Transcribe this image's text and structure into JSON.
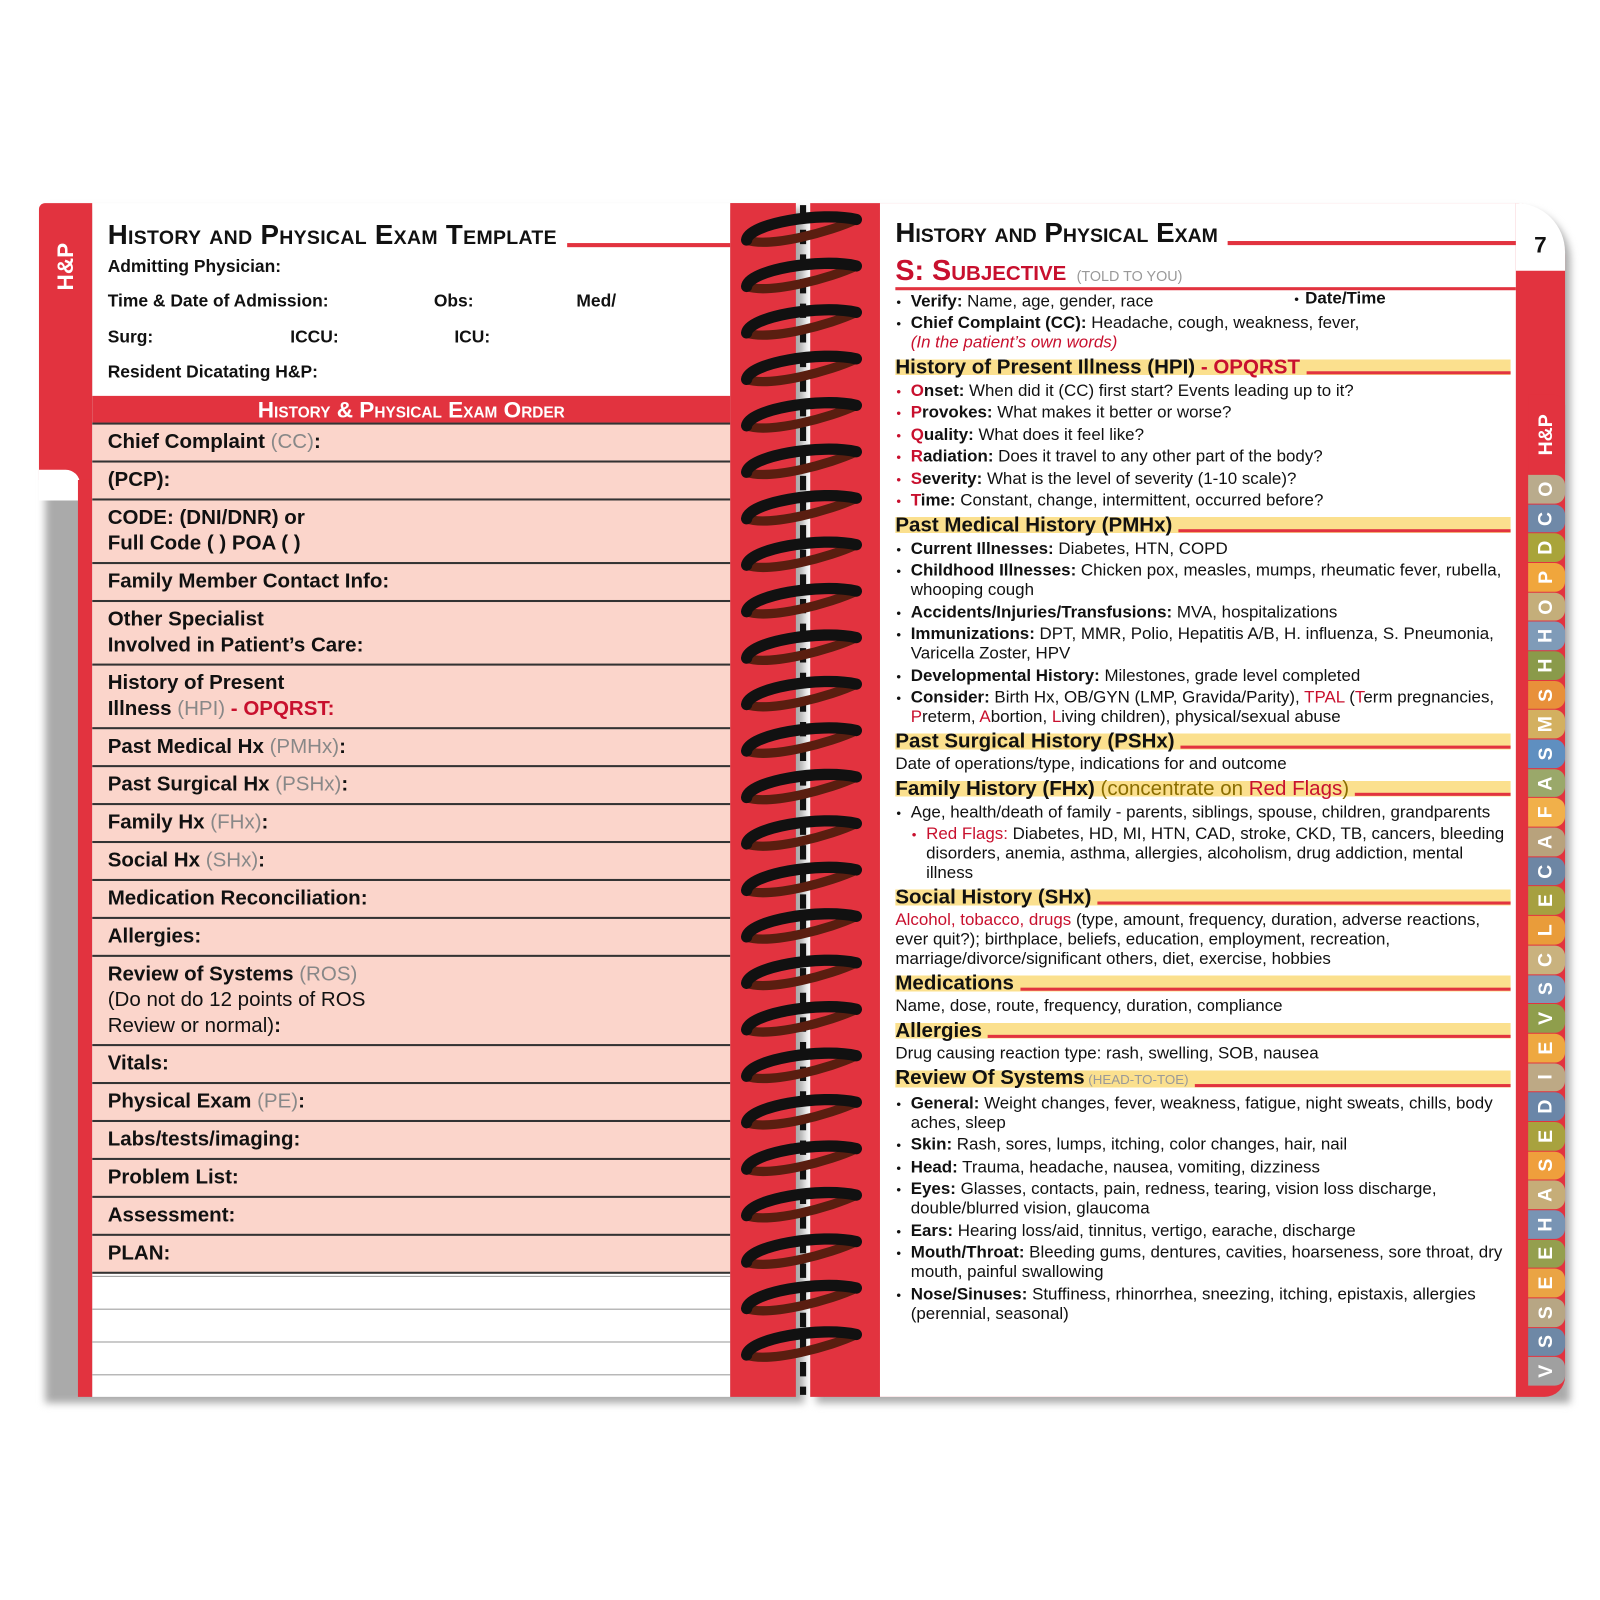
{
  "left_page": {
    "tab": "H&P",
    "title": "History and Physical Exam Template",
    "fields": [
      [
        "Admitting Physician:"
      ],
      [
        "Time & Date of Admission:",
        "Obs:",
        "Med/"
      ],
      [
        "Surg:",
        "ICCU:",
        "ICU:"
      ],
      [
        "Resident Dicatating H&P:"
      ]
    ],
    "order_heading": "History & Physical Exam Order",
    "rows": [
      [
        [
          {
            "s": "bold",
            "t": "Chief Complaint"
          },
          {
            "s": "gray",
            "t": " (CC)"
          },
          {
            "s": "bold",
            "t": ":"
          }
        ]
      ],
      [
        [
          {
            "s": "bold",
            "t": "(PCP):"
          }
        ]
      ],
      [
        [
          {
            "s": "bold",
            "t": "CODE: (DNI/DNR) or"
          }
        ],
        [
          {
            "s": "bold",
            "t": "Full Code ( ) POA ( )"
          }
        ]
      ],
      [
        [
          {
            "s": "bold",
            "t": "Family Member Contact Info:"
          }
        ]
      ],
      [
        [
          {
            "s": "bold",
            "t": "Other Specialist"
          }
        ],
        [
          {
            "s": "bold",
            "t": "Involved in Patient’s Care:"
          }
        ]
      ],
      [
        [
          {
            "s": "bold",
            "t": "History of Present"
          }
        ],
        [
          {
            "s": "bold",
            "t": "Illness"
          },
          {
            "s": "gray",
            "t": " (HPI)"
          },
          {
            "s": "red-bold",
            "t": " - OPQRST:"
          }
        ]
      ],
      [
        [
          {
            "s": "bold",
            "t": "Past Medical Hx"
          },
          {
            "s": "gray",
            "t": " (PMHx)"
          },
          {
            "s": "bold",
            "t": ":"
          }
        ]
      ],
      [
        [
          {
            "s": "bold",
            "t": "Past Surgical Hx"
          },
          {
            "s": "gray",
            "t": " (PSHx)"
          },
          {
            "s": "bold",
            "t": ":"
          }
        ]
      ],
      [
        [
          {
            "s": "bold",
            "t": "Family Hx"
          },
          {
            "s": "gray",
            "t": " (FHx)"
          },
          {
            "s": "bold",
            "t": ":"
          }
        ]
      ],
      [
        [
          {
            "s": "bold",
            "t": "Social Hx"
          },
          {
            "s": "gray",
            "t": " (SHx)"
          },
          {
            "s": "bold",
            "t": ":"
          }
        ]
      ],
      [
        [
          {
            "s": "bold",
            "t": "Medication Reconciliation:"
          }
        ]
      ],
      [
        [
          {
            "s": "bold",
            "t": "Allergies:"
          }
        ]
      ],
      [
        [
          {
            "s": "bold",
            "t": "Review of Systems"
          },
          {
            "s": "gray",
            "t": " (ROS)"
          }
        ],
        [
          {
            "s": "plain",
            "t": "(Do not do 12 points of ROS"
          }
        ],
        [
          {
            "s": "plain",
            "t": "Review or normal)"
          },
          {
            "s": "bold",
            "t": ":"
          }
        ]
      ],
      [
        [
          {
            "s": "bold",
            "t": "Vitals:"
          }
        ]
      ],
      [
        [
          {
            "s": "bold",
            "t": "Physical Exam"
          },
          {
            "s": "gray",
            "t": " (PE)"
          },
          {
            "s": "bold",
            "t": ":"
          }
        ]
      ],
      [
        [
          {
            "s": "bold",
            "t": "Labs/tests/imaging:"
          }
        ]
      ],
      [
        [
          {
            "s": "bold",
            "t": "Problem List:"
          }
        ]
      ],
      [
        [
          {
            "s": "bold",
            "t": "Assessment:"
          }
        ]
      ],
      [
        [
          {
            "s": "bold",
            "t": "PLAN:"
          }
        ]
      ]
    ]
  },
  "right_page": {
    "page_number": "7",
    "title": "History and Physical Exam",
    "subjective": {
      "heading": "S: Subjective",
      "note": "(TOLD TO YOU)"
    },
    "date_time": "Date/Time",
    "intro": [
      {
        "segs": [
          {
            "s": "bold",
            "t": "Verify:"
          },
          {
            "s": "plain",
            "t": " Name, age, gender, race"
          }
        ]
      },
      {
        "segs": [
          {
            "s": "bold",
            "t": "Chief Complaint (CC):"
          },
          {
            "s": "plain",
            "t": " Headache, cough, weakness, fever,"
          },
          {
            "s": "red-italic",
            "t": "(In the patient’s own words)"
          }
        ]
      }
    ],
    "sections": [
      {
        "heading": [
          {
            "s": "bold",
            "t": "History of Present Illness (HPI)"
          },
          {
            "s": "red-bold",
            "t": " - OPQRST"
          }
        ],
        "items": [
          {
            "bullet": "red",
            "segs": [
              {
                "s": "red-bold",
                "t": "O"
              },
              {
                "s": "bold",
                "t": "nset:"
              },
              {
                "s": "plain",
                "t": " When did it (CC) first start? Events leading up to it?"
              }
            ]
          },
          {
            "bullet": "red",
            "segs": [
              {
                "s": "red-bold",
                "t": "P"
              },
              {
                "s": "bold",
                "t": "rovokes:"
              },
              {
                "s": "plain",
                "t": " What makes it better or worse?"
              }
            ]
          },
          {
            "bullet": "red",
            "segs": [
              {
                "s": "red-bold",
                "t": "Q"
              },
              {
                "s": "bold",
                "t": "uality:"
              },
              {
                "s": "plain",
                "t": " What does it feel like?"
              }
            ]
          },
          {
            "bullet": "red",
            "segs": [
              {
                "s": "red-bold",
                "t": "R"
              },
              {
                "s": "bold",
                "t": "adiation:"
              },
              {
                "s": "plain",
                "t": " Does it travel to any other part of the body?"
              }
            ]
          },
          {
            "bullet": "red",
            "segs": [
              {
                "s": "red-bold",
                "t": "S"
              },
              {
                "s": "bold",
                "t": "everity:"
              },
              {
                "s": "plain",
                "t": " What is the level of severity (1-10 scale)?"
              }
            ]
          },
          {
            "bullet": "red",
            "segs": [
              {
                "s": "red-bold",
                "t": "T"
              },
              {
                "s": "bold",
                "t": "ime:"
              },
              {
                "s": "plain",
                "t": " Constant, change, intermittent, occurred before?"
              }
            ]
          }
        ]
      },
      {
        "heading": [
          {
            "s": "bold",
            "t": "Past Medical History (PMHx)"
          }
        ],
        "items": [
          {
            "segs": [
              {
                "s": "bold",
                "t": "Current Illnesses:"
              },
              {
                "s": "plain",
                "t": " Diabetes, HTN, COPD"
              }
            ]
          },
          {
            "segs": [
              {
                "s": "bold",
                "t": "Childhood Illnesses:"
              },
              {
                "s": "plain",
                "t": " Chicken pox, measles, mumps, rheumatic fever, rubella, whooping cough"
              }
            ]
          },
          {
            "segs": [
              {
                "s": "bold",
                "t": "Accidents/Injuries/Transfusions:"
              },
              {
                "s": "plain",
                "t": " MVA, hospitalizations"
              }
            ]
          },
          {
            "segs": [
              {
                "s": "bold",
                "t": "Immunizations:"
              },
              {
                "s": "plain",
                "t": " DPT, MMR, Polio, Hepatitis A/B, H. influenza, S. Pneumonia, Varicella Zoster, HPV"
              }
            ]
          },
          {
            "segs": [
              {
                "s": "bold",
                "t": "Developmental History:"
              },
              {
                "s": "plain",
                "t": " Milestones, grade level completed"
              }
            ]
          },
          {
            "segs": [
              {
                "s": "bold",
                "t": "Consider:"
              },
              {
                "s": "plain",
                "t": " Birth Hx, OB/GYN (LMP, Gravida/Parity), "
              },
              {
                "s": "red",
                "t": "TPAL"
              },
              {
                "s": "plain",
                "t": " ("
              },
              {
                "s": "red",
                "t": "T"
              },
              {
                "s": "plain",
                "t": "erm pregnancies, "
              },
              {
                "s": "red",
                "t": "P"
              },
              {
                "s": "plain",
                "t": "reterm, "
              },
              {
                "s": "red",
                "t": "A"
              },
              {
                "s": "plain",
                "t": "bortion, "
              },
              {
                "s": "red",
                "t": "L"
              },
              {
                "s": "plain",
                "t": "iving children), physical/sexual abuse"
              }
            ]
          }
        ]
      },
      {
        "heading": [
          {
            "s": "bold",
            "t": "Past Surgical History (PSHx)"
          }
        ],
        "text": [
          {
            "s": "plain",
            "t": "Date of operations/type, indications for and outcome"
          }
        ]
      },
      {
        "heading": [
          {
            "s": "bold",
            "t": "Family History (FHx)"
          },
          {
            "s": "note",
            "t": " (concentrate on "
          },
          {
            "s": "red",
            "t": "Red Flags"
          },
          {
            "s": "note",
            "t": ")"
          }
        ],
        "items": [
          {
            "segs": [
              {
                "s": "plain",
                "t": "Age, health/death of family - parents, siblings, spouse, children, grandparents"
              }
            ]
          },
          {
            "bullet": "red",
            "sub": true,
            "segs": [
              {
                "s": "red",
                "t": "Red Flags:"
              },
              {
                "s": "plain",
                "t": " Diabetes, HD, MI, HTN, CAD, stroke, CKD, TB, cancers, bleeding disorders, anemia, asthma, allergies, alcoholism, drug addiction, mental illness"
              }
            ]
          }
        ]
      },
      {
        "heading": [
          {
            "s": "bold",
            "t": "Social History (SHx)"
          }
        ],
        "text": [
          {
            "s": "red",
            "t": "Alcohol, tobacco, drugs"
          },
          {
            "s": "plain",
            "t": " (type, amount, frequency, duration, adverse reactions, ever quit?); birthplace, beliefs, education, employment, recreation, marriage/divorce/significant others, diet, exercise, hobbies"
          }
        ]
      },
      {
        "heading": [
          {
            "s": "bold",
            "t": "Medications"
          }
        ],
        "text": [
          {
            "s": "plain",
            "t": "Name, dose, route, frequency, duration, compliance"
          }
        ]
      },
      {
        "heading": [
          {
            "s": "bold",
            "t": "Allergies"
          }
        ],
        "text": [
          {
            "s": "plain",
            "t": "Drug causing reaction type: rash, swelling, SOB, nausea"
          }
        ]
      },
      {
        "heading": [
          {
            "s": "bold",
            "t": "Review Of Systems"
          },
          {
            "s": "gray-small",
            "t": " (HEAD-TO-TOE)"
          }
        ],
        "items": [
          {
            "segs": [
              {
                "s": "bold",
                "t": "General:"
              },
              {
                "s": "plain",
                "t": " Weight changes, fever, weakness, fatigue, night sweats, chills, body aches, sleep"
              }
            ]
          },
          {
            "segs": [
              {
                "s": "bold",
                "t": "Skin:"
              },
              {
                "s": "plain",
                "t": " Rash, sores, lumps, itching, color changes, hair, nail"
              }
            ]
          },
          {
            "segs": [
              {
                "s": "bold",
                "t": "Head:"
              },
              {
                "s": "plain",
                "t": " Trauma, headache, nausea, vomiting, dizziness"
              }
            ]
          },
          {
            "segs": [
              {
                "s": "bold",
                "t": "Eyes:"
              },
              {
                "s": "plain",
                "t": " Glasses, contacts, pain, redness, tearing, vision loss discharge, double/blurred vision, glaucoma"
              }
            ]
          },
          {
            "segs": [
              {
                "s": "bold",
                "t": "Ears:"
              },
              {
                "s": "plain",
                "t": " Hearing loss/aid, tinnitus, vertigo, earache, discharge"
              }
            ]
          },
          {
            "segs": [
              {
                "s": "bold",
                "t": "Mouth/Throat:"
              },
              {
                "s": "plain",
                "t": " Bleeding gums, dentures, cavities, hoarseness, sore throat, dry mouth, painful swallowing"
              }
            ]
          },
          {
            "segs": [
              {
                "s": "bold",
                "t": "Nose/Sinuses:"
              },
              {
                "s": "plain",
                "t": " Stuffiness, rhinorrhea, sneezing, itching, epistaxis, allergies (perennial, seasonal)"
              }
            ]
          }
        ]
      }
    ],
    "tabs": [
      {
        "label": "H&P",
        "color": "#e2333f"
      },
      {
        "label": "O",
        "color": "#b9ab8c"
      },
      {
        "label": "C",
        "color": "#6f89a8"
      },
      {
        "label": "D",
        "color": "#a9a43a"
      },
      {
        "label": "P",
        "color": "#f0a63c"
      },
      {
        "label": "O",
        "color": "#c4ae7a"
      },
      {
        "label": "H",
        "color": "#7f9bb8"
      },
      {
        "label": "H",
        "color": "#8a9a4a"
      },
      {
        "label": "S",
        "color": "#e8903a"
      },
      {
        "label": "M",
        "color": "#d3b060"
      },
      {
        "label": "S",
        "color": "#5f8fc0"
      },
      {
        "label": "A",
        "color": "#9aa86a"
      },
      {
        "label": "F",
        "color": "#f1b04a"
      },
      {
        "label": "A",
        "color": "#b8a27c"
      },
      {
        "label": "C",
        "color": "#6d86a4"
      },
      {
        "label": "E",
        "color": "#a6a040"
      },
      {
        "label": "L",
        "color": "#e99c3a"
      },
      {
        "label": "C",
        "color": "#c9b27e"
      },
      {
        "label": "S",
        "color": "#7d98b6"
      },
      {
        "label": "V",
        "color": "#8f9e4c"
      },
      {
        "label": "E",
        "color": "#eea840"
      },
      {
        "label": "I",
        "color": "#bda985"
      },
      {
        "label": "D",
        "color": "#6a86a8"
      },
      {
        "label": "E",
        "color": "#a8a23e"
      },
      {
        "label": "S",
        "color": "#ef9f3c"
      },
      {
        "label": "A",
        "color": "#c6ad78"
      },
      {
        "label": "H",
        "color": "#7894b4"
      },
      {
        "label": "E",
        "color": "#949f4e"
      },
      {
        "label": "E",
        "color": "#eaa444"
      },
      {
        "label": "S",
        "color": "#b7a684"
      },
      {
        "label": "S",
        "color": "#6e88a6"
      },
      {
        "label": "V",
        "color": "#a0a0a0"
      }
    ]
  }
}
